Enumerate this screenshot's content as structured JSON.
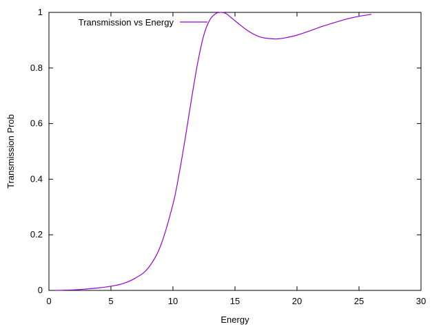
{
  "chart_data": {
    "type": "line",
    "title": "",
    "xlabel": "Energy",
    "ylabel": "Transmission Prob",
    "xlim": [
      0,
      30
    ],
    "ylim": [
      0,
      1
    ],
    "x_ticks": [
      0,
      5,
      10,
      15,
      20,
      25,
      30
    ],
    "x_tick_labels": [
      "0",
      "5",
      "10",
      "15",
      "20",
      "25",
      "30"
    ],
    "y_ticks": [
      0,
      0.2,
      0.4,
      0.6,
      0.8,
      1
    ],
    "y_tick_labels": [
      "0",
      "0.2",
      "0.4",
      "0.6",
      "0.8",
      "1"
    ],
    "grid": false,
    "legend_position": "top-left",
    "series": [
      {
        "name": "Transmission vs Energy",
        "color": "#9400d3",
        "x": [
          0.5,
          2,
          3,
          4,
          5,
          6,
          7,
          8,
          9,
          10,
          10.5,
          11,
          11.5,
          12,
          12.5,
          13,
          13.5,
          13.9,
          14.3,
          15,
          16,
          17,
          18,
          18.5,
          19,
          20,
          21,
          22,
          23,
          24,
          25,
          26
        ],
        "y": [
          0.0,
          0.002,
          0.005,
          0.009,
          0.015,
          0.025,
          0.045,
          0.08,
          0.16,
          0.31,
          0.42,
          0.55,
          0.69,
          0.82,
          0.92,
          0.975,
          0.997,
          1.0,
          0.995,
          0.97,
          0.935,
          0.912,
          0.905,
          0.905,
          0.908,
          0.918,
          0.933,
          0.949,
          0.963,
          0.976,
          0.986,
          0.993
        ]
      }
    ]
  }
}
